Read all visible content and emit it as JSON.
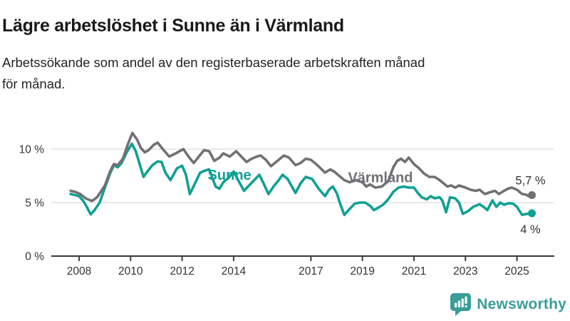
{
  "header": {
    "title": "Lägre arbetslöshet i Sunne än i Värmland",
    "subtitle": "Arbetssökande som andel av den registerbaserade arbetskraften månad för månad.",
    "subtitle_lines": [
      "Arbetssökande som andel av den registerbaserade arbetskraften månad",
      "för månad."
    ]
  },
  "colors": {
    "sunne": "#10a094",
    "varmland": "#717175",
    "grid": "#dcdcdc",
    "axis": "#3c3c3c",
    "text": "#333333",
    "logo": "#3a9d98"
  },
  "chart_data": {
    "type": "line",
    "title": "Lägre arbetslöshet i Sunne än i Värmland",
    "xlabel": "",
    "ylabel": "",
    "y_unit": "%",
    "x_unit": "year (monthly observations)",
    "ylim": [
      0,
      13
    ],
    "xlim": [
      2006.9,
      2026.5
    ],
    "grid": "horizontal",
    "legend_position": "inline-labels",
    "y_ticks": [
      {
        "value": 0,
        "label": "0 %"
      },
      {
        "value": 5,
        "label": "5 %"
      },
      {
        "value": 10,
        "label": "10 %"
      }
    ],
    "x_ticks": [
      {
        "value": 2008,
        "label": "2008"
      },
      {
        "value": 2010,
        "label": "2010"
      },
      {
        "value": 2012,
        "label": "2012"
      },
      {
        "value": 2014,
        "label": "2014"
      },
      {
        "value": 2017,
        "label": "2017"
      },
      {
        "value": 2019,
        "label": "2019"
      },
      {
        "value": 2021,
        "label": "2021"
      },
      {
        "value": 2023,
        "label": "2023"
      },
      {
        "value": 2025,
        "label": "2025"
      }
    ],
    "series_labels": [
      {
        "text": "Sunne",
        "x_year": 2013.84,
        "y_value": 7.15,
        "color": "#10a094"
      },
      {
        "text": "Värmland",
        "x_year": 2019.7,
        "y_value": 6.9,
        "color": "#717175"
      }
    ],
    "series": [
      {
        "name": "Sunne",
        "color": "#10a094",
        "end_label": "4 %",
        "end_value": 4.0,
        "end_label_position": "below",
        "points": [
          [
            2007.67,
            5.8
          ],
          [
            2007.85,
            5.7
          ],
          [
            2008.0,
            5.6
          ],
          [
            2008.15,
            5.2
          ],
          [
            2008.3,
            4.6
          ],
          [
            2008.45,
            3.9
          ],
          [
            2008.6,
            4.3
          ],
          [
            2008.8,
            5.0
          ],
          [
            2009.0,
            6.4
          ],
          [
            2009.2,
            7.7
          ],
          [
            2009.35,
            8.5
          ],
          [
            2009.5,
            8.3
          ],
          [
            2009.65,
            8.7
          ],
          [
            2009.85,
            9.7
          ],
          [
            2010.05,
            10.5
          ],
          [
            2010.2,
            9.8
          ],
          [
            2010.35,
            8.6
          ],
          [
            2010.5,
            7.4
          ],
          [
            2010.65,
            7.9
          ],
          [
            2010.85,
            8.5
          ],
          [
            2011.05,
            8.85
          ],
          [
            2011.2,
            8.8
          ],
          [
            2011.35,
            7.8
          ],
          [
            2011.55,
            7.1
          ],
          [
            2011.8,
            8.2
          ],
          [
            2012.0,
            8.45
          ],
          [
            2012.15,
            7.6
          ],
          [
            2012.3,
            5.8
          ],
          [
            2012.5,
            6.8
          ],
          [
            2012.7,
            7.8
          ],
          [
            2012.9,
            8.0
          ],
          [
            2013.05,
            8.1
          ],
          [
            2013.3,
            6.5
          ],
          [
            2013.45,
            6.3
          ],
          [
            2013.6,
            6.9
          ],
          [
            2013.8,
            7.3
          ],
          [
            2014.0,
            7.9
          ],
          [
            2014.2,
            7.0
          ],
          [
            2014.4,
            6.1
          ],
          [
            2014.6,
            6.6
          ],
          [
            2014.8,
            7.1
          ],
          [
            2015.0,
            7.6
          ],
          [
            2015.2,
            6.6
          ],
          [
            2015.35,
            5.8
          ],
          [
            2015.55,
            6.5
          ],
          [
            2015.75,
            7.1
          ],
          [
            2015.9,
            7.6
          ],
          [
            2016.1,
            7.2
          ],
          [
            2016.4,
            5.9
          ],
          [
            2016.6,
            6.8
          ],
          [
            2016.8,
            7.4
          ],
          [
            2017.05,
            7.2
          ],
          [
            2017.3,
            6.3
          ],
          [
            2017.55,
            5.6
          ],
          [
            2017.7,
            6.2
          ],
          [
            2017.85,
            6.5
          ],
          [
            2018.0,
            5.9
          ],
          [
            2018.15,
            4.8
          ],
          [
            2018.3,
            3.85
          ],
          [
            2018.5,
            4.4
          ],
          [
            2018.7,
            4.9
          ],
          [
            2018.9,
            5.0
          ],
          [
            2019.1,
            5.0
          ],
          [
            2019.3,
            4.7
          ],
          [
            2019.45,
            4.3
          ],
          [
            2019.6,
            4.5
          ],
          [
            2019.8,
            4.8
          ],
          [
            2020.0,
            5.3
          ],
          [
            2020.2,
            6.0
          ],
          [
            2020.4,
            6.4
          ],
          [
            2020.6,
            6.5
          ],
          [
            2020.8,
            6.4
          ],
          [
            2021.0,
            6.4
          ],
          [
            2021.15,
            5.9
          ],
          [
            2021.3,
            5.5
          ],
          [
            2021.5,
            5.3
          ],
          [
            2021.65,
            5.6
          ],
          [
            2021.8,
            5.4
          ],
          [
            2022.0,
            5.5
          ],
          [
            2022.1,
            5.2
          ],
          [
            2022.25,
            4.1
          ],
          [
            2022.4,
            5.5
          ],
          [
            2022.6,
            5.4
          ],
          [
            2022.75,
            5.0
          ],
          [
            2022.9,
            3.95
          ],
          [
            2023.1,
            4.2
          ],
          [
            2023.3,
            4.6
          ],
          [
            2023.55,
            4.85
          ],
          [
            2023.7,
            4.6
          ],
          [
            2023.85,
            4.3
          ],
          [
            2024.05,
            5.2
          ],
          [
            2024.2,
            4.6
          ],
          [
            2024.35,
            5.0
          ],
          [
            2024.5,
            4.8
          ],
          [
            2024.7,
            4.95
          ],
          [
            2024.85,
            4.9
          ],
          [
            2025.0,
            4.6
          ],
          [
            2025.2,
            3.85
          ],
          [
            2025.4,
            3.95
          ],
          [
            2025.58,
            4.0
          ]
        ]
      },
      {
        "name": "Värmland",
        "color": "#717175",
        "end_label": "5,7 %",
        "end_value": 5.7,
        "end_label_position": "above",
        "points": [
          [
            2007.67,
            6.1
          ],
          [
            2007.85,
            6.0
          ],
          [
            2008.05,
            5.8
          ],
          [
            2008.25,
            5.4
          ],
          [
            2008.5,
            5.15
          ],
          [
            2008.7,
            5.5
          ],
          [
            2009.0,
            6.6
          ],
          [
            2009.2,
            7.9
          ],
          [
            2009.35,
            8.6
          ],
          [
            2009.5,
            8.5
          ],
          [
            2009.7,
            9.1
          ],
          [
            2009.9,
            10.5
          ],
          [
            2010.07,
            11.5
          ],
          [
            2010.25,
            10.9
          ],
          [
            2010.4,
            10.1
          ],
          [
            2010.55,
            9.7
          ],
          [
            2010.7,
            9.9
          ],
          [
            2010.9,
            10.4
          ],
          [
            2011.05,
            10.6
          ],
          [
            2011.25,
            10.0
          ],
          [
            2011.5,
            9.3
          ],
          [
            2011.75,
            9.6
          ],
          [
            2012.05,
            10.0
          ],
          [
            2012.25,
            9.3
          ],
          [
            2012.45,
            8.7
          ],
          [
            2012.65,
            9.3
          ],
          [
            2012.85,
            9.9
          ],
          [
            2013.05,
            9.8
          ],
          [
            2013.25,
            8.9
          ],
          [
            2013.45,
            9.2
          ],
          [
            2013.6,
            9.6
          ],
          [
            2013.85,
            9.3
          ],
          [
            2014.1,
            9.8
          ],
          [
            2014.3,
            9.3
          ],
          [
            2014.5,
            8.8
          ],
          [
            2014.7,
            9.1
          ],
          [
            2014.9,
            9.3
          ],
          [
            2015.05,
            9.4
          ],
          [
            2015.25,
            9.0
          ],
          [
            2015.45,
            8.4
          ],
          [
            2015.7,
            8.9
          ],
          [
            2015.95,
            9.4
          ],
          [
            2016.15,
            9.2
          ],
          [
            2016.4,
            8.5
          ],
          [
            2016.6,
            8.7
          ],
          [
            2016.8,
            9.1
          ],
          [
            2017.0,
            9.0
          ],
          [
            2017.25,
            8.5
          ],
          [
            2017.55,
            7.8
          ],
          [
            2017.75,
            8.1
          ],
          [
            2017.9,
            7.9
          ],
          [
            2018.1,
            7.5
          ],
          [
            2018.3,
            7.1
          ],
          [
            2018.5,
            6.9
          ],
          [
            2018.75,
            7.1
          ],
          [
            2019.0,
            6.9
          ],
          [
            2019.15,
            6.5
          ],
          [
            2019.3,
            6.7
          ],
          [
            2019.5,
            6.4
          ],
          [
            2019.75,
            6.5
          ],
          [
            2020.0,
            7.0
          ],
          [
            2020.2,
            8.3
          ],
          [
            2020.35,
            8.9
          ],
          [
            2020.5,
            9.1
          ],
          [
            2020.65,
            8.8
          ],
          [
            2020.8,
            9.2
          ],
          [
            2021.0,
            8.6
          ],
          [
            2021.2,
            8.2
          ],
          [
            2021.4,
            7.7
          ],
          [
            2021.6,
            7.4
          ],
          [
            2021.8,
            7.4
          ],
          [
            2022.0,
            7.1
          ],
          [
            2022.15,
            6.8
          ],
          [
            2022.3,
            6.5
          ],
          [
            2022.45,
            6.6
          ],
          [
            2022.6,
            6.4
          ],
          [
            2022.75,
            6.6
          ],
          [
            2023.0,
            6.4
          ],
          [
            2023.2,
            6.2
          ],
          [
            2023.4,
            6.1
          ],
          [
            2023.55,
            6.2
          ],
          [
            2023.75,
            5.8
          ],
          [
            2024.0,
            6.0
          ],
          [
            2024.15,
            6.1
          ],
          [
            2024.3,
            5.8
          ],
          [
            2024.5,
            6.1
          ],
          [
            2024.65,
            6.3
          ],
          [
            2024.8,
            6.4
          ],
          [
            2025.0,
            6.2
          ],
          [
            2025.2,
            5.8
          ],
          [
            2025.35,
            5.75
          ],
          [
            2025.45,
            5.6
          ],
          [
            2025.58,
            5.7
          ]
        ]
      }
    ]
  },
  "branding": {
    "logo_text": "Newsworthy",
    "logo_icon": "bar-chart-speech-bubble-icon"
  }
}
